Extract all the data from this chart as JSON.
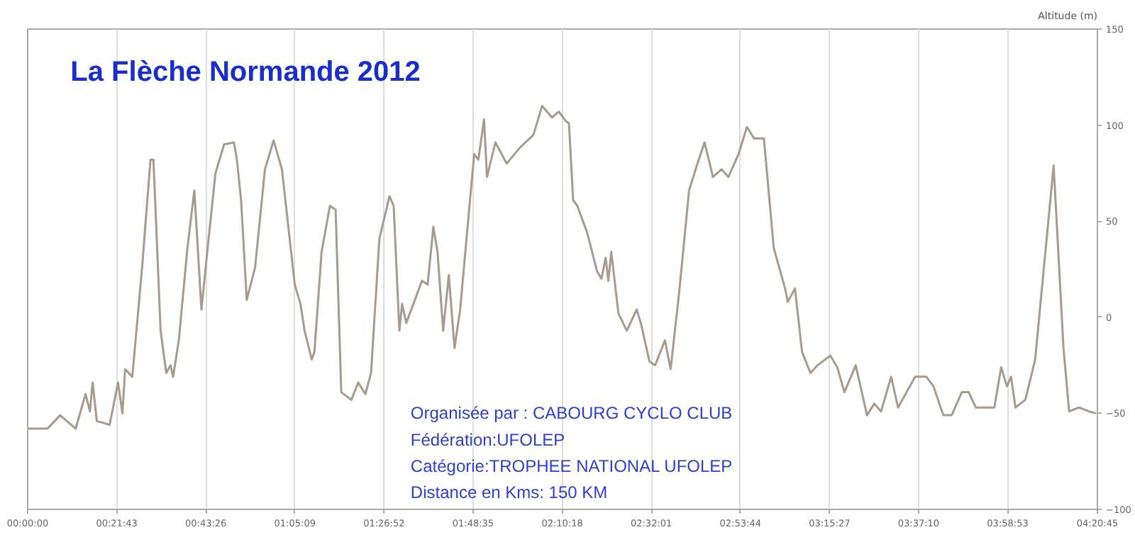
{
  "chart_data": {
    "type": "line",
    "title": "La Flèche Normande 2012",
    "ylabel": "Altitude (m)",
    "annotations": [
      "Organisée par : CABOURG CYCLO CLUB",
      "Fédération:UFOLEP",
      "Catégorie:TROPHEE NATIONAL UFOLEP",
      "Distance en Kms: 150 KM"
    ],
    "x": [
      0,
      0.08,
      0.132,
      0.195,
      0.235,
      0.253,
      0.264,
      0.281,
      0.333,
      0.367,
      0.385,
      0.396,
      0.425,
      0.465,
      0.499,
      0.511,
      0.54,
      0.563,
      0.58,
      0.591,
      0.614,
      0.649,
      0.677,
      0.706,
      0.735,
      0.763,
      0.798,
      0.838,
      0.85,
      0.867,
      0.89,
      0.924,
      0.964,
      0.999,
      1.033,
      1.085,
      1.108,
      1.125,
      1.154,
      1.165,
      1.194,
      1.228,
      1.251,
      1.274,
      1.315,
      1.343,
      1.372,
      1.395,
      1.429,
      1.47,
      1.487,
      1.51,
      1.521,
      1.538,
      1.573,
      1.602,
      1.625,
      1.648,
      1.665,
      1.688,
      1.711,
      1.734,
      1.757,
      1.797,
      1.814,
      1.831,
      1.854,
      1.866,
      1.9,
      1.946,
      1.998,
      2.055,
      2.09,
      2.13,
      2.158,
      2.187,
      2.199,
      2.216,
      2.233,
      2.273,
      2.313,
      2.331,
      2.348,
      2.359,
      2.371,
      2.4,
      2.434,
      2.474,
      2.491,
      2.526,
      2.549,
      2.589,
      2.612,
      2.646,
      2.687,
      2.721,
      2.75,
      2.784,
      2.819,
      2.847,
      2.888,
      2.922,
      2.951,
      2.991,
      3.031,
      3.077,
      3.088,
      3.117,
      3.146,
      3.18,
      3.209,
      3.261,
      3.289,
      3.318,
      3.364,
      3.41,
      3.439,
      3.467,
      3.508,
      3.536,
      3.605,
      3.651,
      3.68,
      3.72,
      3.754,
      3.795,
      3.823,
      3.852,
      3.927,
      3.955,
      3.978,
      3.995,
      4.013,
      4.053,
      4.093,
      4.168,
      4.208,
      4.231,
      4.271,
      4.311,
      4.34
    ],
    "series": [
      {
        "color": "#a89a8c",
        "values": [
          -58,
          -58,
          -51,
          -58,
          -40,
          -49,
          -34,
          -54,
          -56,
          -34,
          -50,
          -27,
          -31,
          26,
          82,
          82,
          -7,
          -29,
          -25,
          -31,
          -12,
          36,
          66,
          4,
          41,
          75,
          90,
          91,
          82,
          61,
          9,
          26,
          77,
          92,
          77,
          17,
          7,
          -7,
          -22,
          -18,
          34,
          58,
          56,
          -39,
          -43,
          -34,
          -40,
          -29,
          41,
          63,
          58,
          -7,
          7,
          -3,
          9,
          19,
          17,
          47,
          34,
          -7,
          22,
          -16,
          4,
          61,
          85,
          82,
          103,
          73,
          91,
          80,
          88,
          95,
          110,
          104,
          107,
          102,
          101,
          61,
          58,
          44,
          24,
          20,
          31,
          19,
          34,
          2,
          -7,
          4,
          -3,
          -23,
          -25,
          -12,
          -27,
          12,
          66,
          80,
          91,
          73,
          77,
          73,
          85,
          99,
          93,
          93,
          36,
          15,
          8,
          15,
          -18,
          -29,
          -25,
          -20,
          -26,
          -39,
          -25,
          -51,
          -45,
          -49,
          -31,
          -47,
          -31,
          -31,
          -36,
          -51,
          -51,
          -39,
          -39,
          -47,
          -47,
          -26,
          -36,
          -31,
          -47,
          -43,
          -22,
          79,
          -16,
          -49,
          -47,
          -49,
          -50
        ]
      }
    ],
    "xlim": [
      0,
      4.34583
    ],
    "xticks": [
      {
        "value": 0,
        "label": "00:00:00"
      },
      {
        "value": 0.36194,
        "label": "00:21:43"
      },
      {
        "value": 0.72389,
        "label": "00:43:26"
      },
      {
        "value": 1.08583,
        "label": "01:05:09"
      },
      {
        "value": 1.44778,
        "label": "01:26:52"
      },
      {
        "value": 1.80972,
        "label": "01:48:35"
      },
      {
        "value": 2.17167,
        "label": "02:10:18"
      },
      {
        "value": 2.53361,
        "label": "02:32:01"
      },
      {
        "value": 2.89556,
        "label": "02:53:44"
      },
      {
        "value": 3.2575,
        "label": "03:15:27"
      },
      {
        "value": 3.61944,
        "label": "03:37:10"
      },
      {
        "value": 3.98139,
        "label": "03:58:53"
      },
      {
        "value": 4.34583,
        "label": "04:20:45"
      }
    ],
    "ylim": [
      -100,
      150
    ],
    "yticks": [
      -100,
      -50,
      0,
      50,
      100,
      150
    ],
    "grid": "x"
  }
}
